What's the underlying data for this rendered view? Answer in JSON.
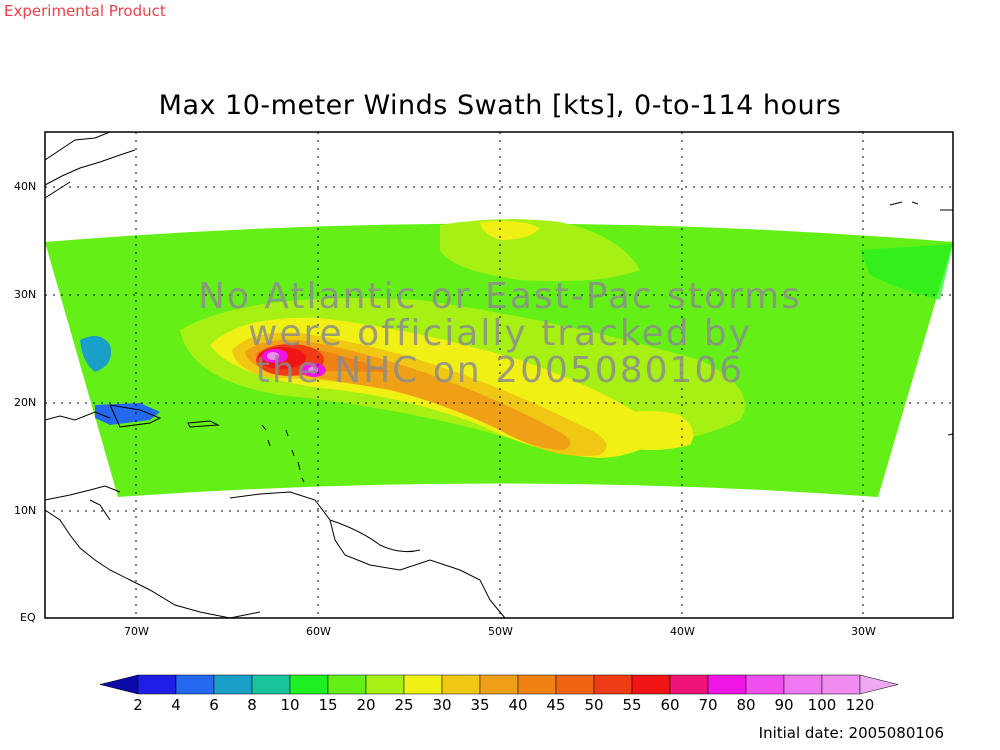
{
  "header": {
    "product_label": "Experimental Product",
    "title": "Max 10-meter Winds Swath [kts], 0-to-114 hours"
  },
  "map": {
    "type": "wind-swath-map",
    "lon_range_deg": [
      -75,
      -25
    ],
    "lat_range_deg": [
      0,
      45
    ],
    "grid_lines": true,
    "lat_tick_labels": [
      "40N",
      "30N",
      "20N",
      "10N",
      "EQ"
    ],
    "lon_tick_labels": [
      "70W",
      "60W",
      "50W",
      "40W",
      "30W"
    ],
    "overlay_text": [
      "No Atlantic or East-Pac storms",
      "were officially tracked by",
      "the NHC on 2005080106"
    ]
  },
  "colorbar": {
    "labels": [
      "2",
      "4",
      "6",
      "8",
      "10",
      "15",
      "20",
      "25",
      "30",
      "35",
      "40",
      "45",
      "50",
      "55",
      "60",
      "70",
      "80",
      "90",
      "100",
      "120"
    ],
    "colors": [
      "#0a0aa8",
      "#1e1ee6",
      "#2469f0",
      "#1aa0c8",
      "#19c39b",
      "#1ef021",
      "#64f016",
      "#a6f014",
      "#f0f014",
      "#f0c814",
      "#f0a016",
      "#f08214",
      "#f06414",
      "#f03c14",
      "#f01414",
      "#f01478",
      "#f014e6",
      "#f050f0",
      "#f078f0",
      "#f08cf0",
      "#f0a8f0"
    ]
  },
  "footer": {
    "initial_date": "Initial date: 2005080106"
  }
}
